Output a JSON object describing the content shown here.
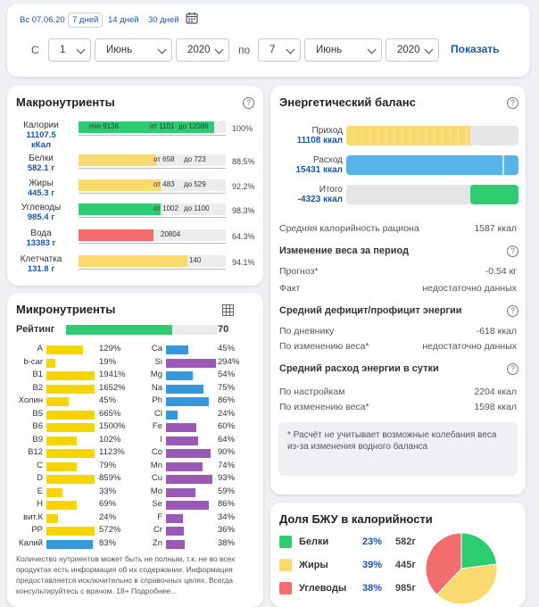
{
  "period": {
    "tabs": [
      "Вс 07.06.20",
      "7 дней",
      "14 дней",
      "30 дней"
    ],
    "from_label": "С",
    "to_label": "по",
    "from_day": "1",
    "from_month": "Июнь",
    "from_year": "2020",
    "to_day": "7",
    "to_month": "Июнь",
    "to_year": "2020",
    "show_button": "Показать"
  },
  "macro": {
    "title": "Макронутриенты",
    "help": "?",
    "rows": [
      {
        "name": "Калории",
        "value": "11107.5",
        "unit": "кКал",
        "labels": [
          "min 9138",
          "от 1101",
          "до 12086"
        ],
        "pct": "100%",
        "color": "#2ecc71",
        "fill": 0.92
      },
      {
        "name": "Белки",
        "value": "582.1 г",
        "unit": "",
        "labels": [
          "от 658",
          "до 723"
        ],
        "pct": "88.5%",
        "color": "#fad96e",
        "fill": 0.53
      },
      {
        "name": "Жиры",
        "value": "445.3 г",
        "unit": "",
        "labels": [
          "от 483",
          "до 529"
        ],
        "pct": "92.2%",
        "color": "#fad96e",
        "fill": 0.56
      },
      {
        "name": "Углеводы",
        "value": "985.4 г",
        "unit": "",
        "labels": [
          "от 1002",
          "до 1100"
        ],
        "pct": "98.3%",
        "color": "#2ecc71",
        "fill": 0.56
      },
      {
        "name": "Вода",
        "value": "13383 г",
        "unit": "",
        "labels": [
          "20804"
        ],
        "pct": "64.3%",
        "color": "#f26d6d",
        "fill": 0.51
      },
      {
        "name": "Клетчатка",
        "value": "131.8 г",
        "unit": "",
        "labels": [
          "140"
        ],
        "pct": "94.1%",
        "color": "#fad96e",
        "fill": 0.74
      }
    ]
  },
  "micro": {
    "title": "Микронутриенты",
    "rating_label": "Рейтинг",
    "rating_value": "70",
    "rating_fill": 0.7,
    "left": [
      {
        "n": "A",
        "v": "129%",
        "f": 0.74
      },
      {
        "n": "b-car",
        "v": "19%",
        "f": 0.19
      },
      {
        "n": "B1",
        "v": "1941%",
        "f": 0.98
      },
      {
        "n": "B2",
        "v": "1652%",
        "f": 0.98
      },
      {
        "n": "Холин",
        "v": "45%",
        "f": 0.45
      },
      {
        "n": "B5",
        "v": "665%",
        "f": 0.98
      },
      {
        "n": "B6",
        "v": "1500%",
        "f": 0.98
      },
      {
        "n": "B9",
        "v": "102%",
        "f": 0.62
      },
      {
        "n": "B12",
        "v": "1123%",
        "f": 0.98
      },
      {
        "n": "C",
        "v": "79%",
        "f": 0.62
      },
      {
        "n": "D",
        "v": "859%",
        "f": 0.98
      },
      {
        "n": "E",
        "v": "33%",
        "f": 0.33
      },
      {
        "n": "H",
        "v": "69%",
        "f": 0.62
      },
      {
        "n": "вит.К",
        "v": "24%",
        "f": 0.24
      },
      {
        "n": "PP",
        "v": "572%",
        "f": 0.98
      },
      {
        "n": "Калий",
        "v": "83%",
        "f": 0.95
      }
    ],
    "right": [
      {
        "n": "Ca",
        "v": "45%",
        "f": 0.45,
        "c": "#3498db"
      },
      {
        "n": "Si",
        "v": "294%",
        "f": 1.0,
        "c": "#9b59b6"
      },
      {
        "n": "Mg",
        "v": "54%",
        "f": 0.54,
        "c": "#3498db"
      },
      {
        "n": "Na",
        "v": "75%",
        "f": 0.75,
        "c": "#3498db"
      },
      {
        "n": "Ph",
        "v": "86%",
        "f": 0.86,
        "c": "#3498db"
      },
      {
        "n": "Cl",
        "v": "24%",
        "f": 0.24,
        "c": "#3498db"
      },
      {
        "n": "Fe",
        "v": "60%",
        "f": 0.6,
        "c": "#9b59b6"
      },
      {
        "n": "I",
        "v": "64%",
        "f": 0.64,
        "c": "#9b59b6"
      },
      {
        "n": "Co",
        "v": "90%",
        "f": 0.9,
        "c": "#9b59b6"
      },
      {
        "n": "Mn",
        "v": "74%",
        "f": 0.74,
        "c": "#9b59b6"
      },
      {
        "n": "Cu",
        "v": "93%",
        "f": 0.93,
        "c": "#9b59b6"
      },
      {
        "n": "Mo",
        "v": "59%",
        "f": 0.59,
        "c": "#9b59b6"
      },
      {
        "n": "Se",
        "v": "86%",
        "f": 0.86,
        "c": "#9b59b6"
      },
      {
        "n": "F",
        "v": "34%",
        "f": 0.34,
        "c": "#9b59b6"
      },
      {
        "n": "Cr",
        "v": "36%",
        "f": 0.36,
        "c": "#9b59b6"
      },
      {
        "n": "Zn",
        "v": "38%",
        "f": 0.38,
        "c": "#9b59b6"
      }
    ],
    "note": "Количество нутриентов может быть не полным, т.к. не во всех продуктах есть информация об их содержании. Информация предоставляется исключительно в справочных целях. Всегда консультируйтесь с врачом. 18+ Подробнее..."
  },
  "energy": {
    "title": "Энергетический баланс",
    "income_label": "Приход",
    "income_value": "11108 ккал",
    "income_fill": 0.72,
    "expense_label": "Расход",
    "expense_value": "15431 ккал",
    "expense_fill": 1.0,
    "total_label": "Итого",
    "total_value": "-4323 ккал",
    "total_fill": 0.28,
    "avg_cal_label": "Средняя калорийность рациона",
    "avg_cal_value": "1587 ккал",
    "weight_title": "Изменение веса за период",
    "forecast_label": "Прогноз*",
    "forecast_value": "-0.54 кг",
    "fact_label": "Факт",
    "fact_value": "недостаточно данных",
    "deficit_title": "Средний дефицит/профицит энергии",
    "diary_label": "По дневнику",
    "diary_value": "-618 ккал",
    "byweight_label": "По изменению веса*",
    "byweight_value": "недостаточно данных",
    "expense_title": "Средний расход энергии в сутки",
    "settings_label": "По настройкам",
    "settings_value": "2204 ккал",
    "byweight2_label": "По изменению веса*",
    "byweight2_value": "1598 ккал",
    "note": "* Расчёт не учитывает возможные колебания веса из-за изменения водного баланса"
  },
  "bju": {
    "title": "Доля БЖУ в калорийности",
    "rows": [
      {
        "name": "Белки",
        "pct": "23%",
        "g": "582г",
        "color": "#2ecc71"
      },
      {
        "name": "Жиры",
        "pct": "39%",
        "g": "445г",
        "color": "#fad96e"
      },
      {
        "name": "Углеводы",
        "pct": "38%",
        "g": "985г",
        "color": "#f26d6d"
      }
    ]
  }
}
